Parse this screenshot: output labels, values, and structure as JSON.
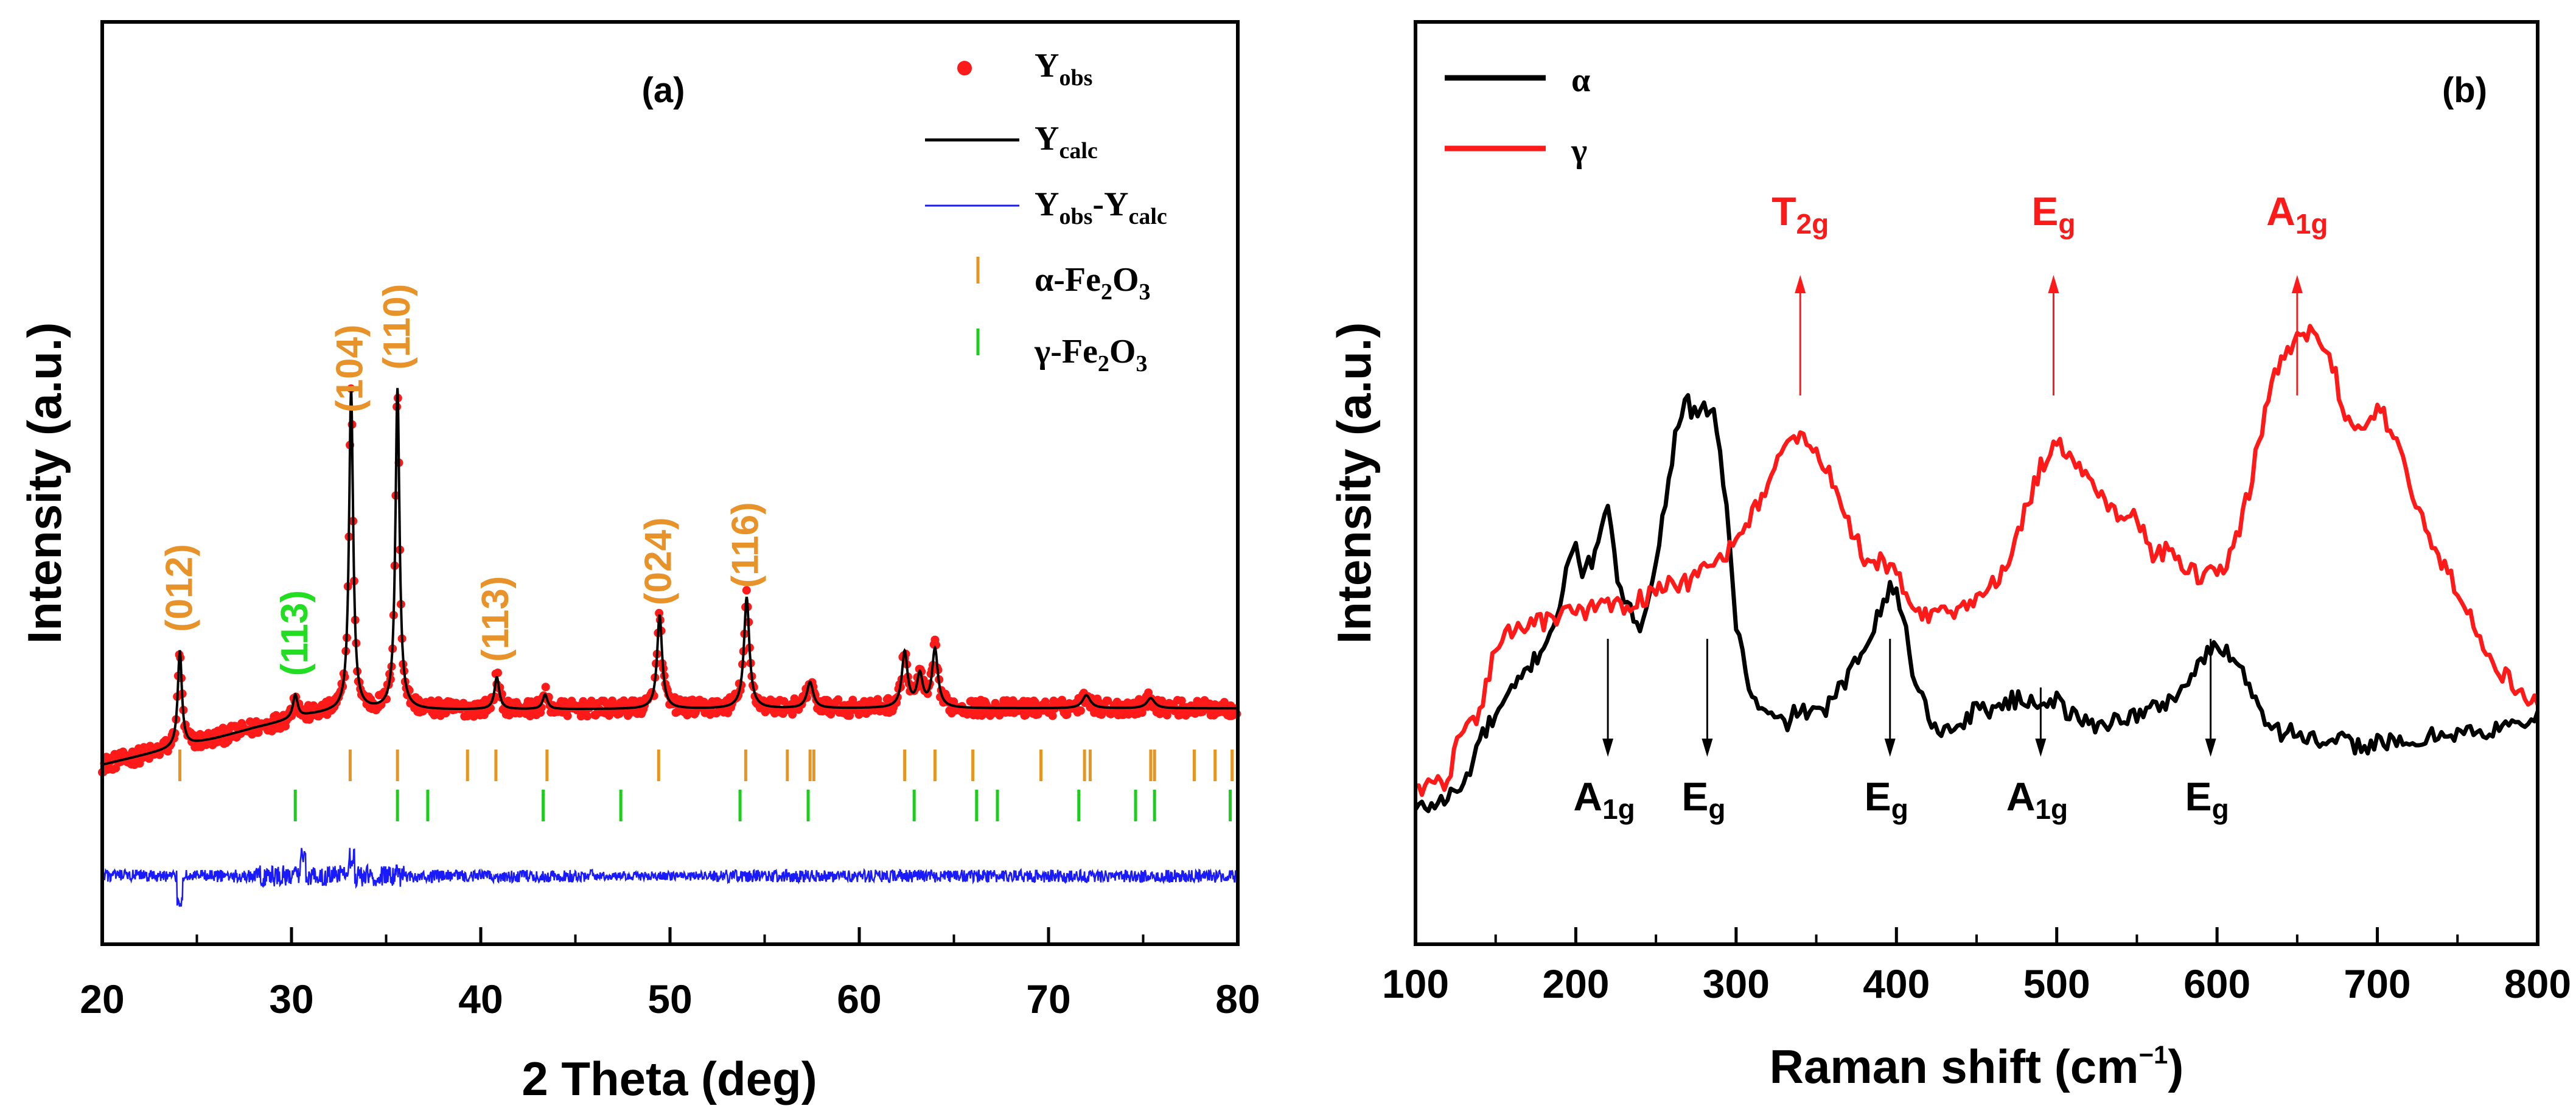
{
  "chart_data": [
    {
      "type": "line",
      "panel": "(a)",
      "xlabel": "2 Theta (deg)",
      "ylabel": "Intensity (a.u.)",
      "xlim": [
        20,
        80
      ],
      "xticks": [
        20,
        30,
        40,
        50,
        60,
        70,
        80
      ],
      "grid": false,
      "legend": {
        "position": "top-right",
        "entries": [
          {
            "key": "yobs",
            "label": "Y",
            "sub": "obs",
            "marker": "dot",
            "color": "#ff1a1a"
          },
          {
            "key": "ycalc",
            "label": "Y",
            "sub": "calc",
            "marker": "line",
            "color": "#000000"
          },
          {
            "key": "diff",
            "label_parts": [
              {
                "t": "Y",
                "sub": false
              },
              {
                "t": "obs",
                "sub": true
              },
              {
                "t": "-Y",
                "sub": false
              },
              {
                "t": "calc",
                "sub": true
              }
            ],
            "marker": "line",
            "color": "#1a1aff"
          },
          {
            "key": "alpha",
            "label_parts": [
              {
                "t": "α-Fe",
                "sub": false
              },
              {
                "t": "2",
                "sub": true
              },
              {
                "t": "O",
                "sub": false
              },
              {
                "t": "3",
                "sub": true
              }
            ],
            "marker": "tick",
            "color": "#e69520"
          },
          {
            "key": "gamma",
            "label_parts": [
              {
                "t": "γ-Fe",
                "sub": false
              },
              {
                "t": "2",
                "sub": true
              },
              {
                "t": "O",
                "sub": false
              },
              {
                "t": "3",
                "sub": true
              }
            ],
            "marker": "tick",
            "color": "#1ecc1e"
          }
        ]
      },
      "background": {
        "x": [
          20,
          22,
          24,
          26,
          28,
          30,
          31,
          32,
          34,
          36,
          38,
          40,
          45,
          50,
          55,
          60,
          65,
          70,
          75,
          80
        ],
        "y": [
          10,
          13,
          16,
          19,
          22.5,
          25.5,
          27,
          27.8,
          28.5,
          28.7,
          28.8,
          28.9,
          29,
          29.1,
          29.2,
          29.3,
          29.3,
          29.3,
          29.3,
          29.3
        ]
      },
      "peaks": [
        {
          "x": 24.1,
          "h": 33,
          "w": 0.13
        },
        {
          "x": 30.2,
          "h": 8,
          "w": 0.15
        },
        {
          "x": 33.15,
          "h": 110,
          "w": 0.13
        },
        {
          "x": 35.6,
          "h": 110,
          "w": 0.13
        },
        {
          "x": 40.85,
          "h": 11,
          "w": 0.15
        },
        {
          "x": 43.4,
          "h": 5,
          "w": 0.15
        },
        {
          "x": 49.45,
          "h": 32,
          "w": 0.16
        },
        {
          "x": 54.05,
          "h": 38,
          "w": 0.17
        },
        {
          "x": 57.4,
          "h": 9,
          "w": 0.2
        },
        {
          "x": 62.4,
          "h": 19,
          "w": 0.18
        },
        {
          "x": 63.2,
          "h": 11,
          "w": 0.18
        },
        {
          "x": 64.0,
          "h": 20,
          "w": 0.18
        },
        {
          "x": 72.0,
          "h": 4.5,
          "w": 0.25
        },
        {
          "x": 75.4,
          "h": 3.5,
          "w": 0.25
        }
      ],
      "alpha_reflections": [
        24.1,
        33.1,
        35.6,
        39.3,
        40.8,
        43.5,
        49.4,
        54.0,
        56.2,
        57.4,
        57.6,
        62.4,
        64.0,
        66.0,
        69.6,
        71.9,
        72.2,
        75.4,
        75.6,
        77.7,
        78.8,
        79.7
      ],
      "gamma_reflections": [
        30.2,
        35.6,
        37.2,
        43.3,
        47.4,
        53.7,
        57.3,
        62.9,
        66.2,
        67.3,
        71.6,
        74.6,
        75.6,
        79.6
      ],
      "annotations": [
        {
          "text": "(012)",
          "x": 24.1,
          "color": "#e8922a"
        },
        {
          "text": "(113)",
          "x": 30.2,
          "color": "#22dd22"
        },
        {
          "text": "(104)",
          "x": 33.1,
          "color": "#e8922a"
        },
        {
          "text": "(110)",
          "x": 35.6,
          "color": "#e8922a"
        },
        {
          "text": "(113)",
          "x": 40.8,
          "color": "#e8922a"
        },
        {
          "text": "(024)",
          "x": 49.4,
          "color": "#e8922a"
        },
        {
          "text": "(116)",
          "x": 54.0,
          "color": "#e8922a"
        }
      ]
    },
    {
      "type": "line",
      "panel": "(b)",
      "xlabel": "Raman shift (cm",
      "xlabel_sup": "−1",
      "xlabel_close": ")",
      "ylabel": "Intensity (a.u.)",
      "xlim": [
        100,
        800
      ],
      "xticks": [
        100,
        200,
        300,
        400,
        500,
        600,
        700,
        800
      ],
      "ylim": [
        0,
        100
      ],
      "grid": false,
      "legend": {
        "position": "top-left",
        "entries": [
          {
            "label": "α",
            "color": "#000000"
          },
          {
            "label": "γ",
            "color": "#ff1a1a"
          }
        ]
      },
      "series": [
        {
          "name": "α",
          "color": "#000000",
          "x": [
            100,
            115,
            130,
            140,
            150,
            160,
            170,
            180,
            190,
            195,
            200,
            205,
            210,
            215,
            220,
            225,
            230,
            240,
            250,
            258,
            265,
            270,
            275,
            280,
            285,
            290,
            295,
            300,
            310,
            320,
            330,
            340,
            350,
            360,
            370,
            380,
            390,
            395,
            400,
            405,
            410,
            420,
            430,
            440,
            450,
            460,
            470,
            480,
            490,
            500,
            510,
            520,
            530,
            540,
            550,
            560,
            570,
            580,
            590,
            600,
            610,
            620,
            630,
            640,
            650,
            660,
            670,
            680,
            690,
            700,
            720,
            740,
            760,
            770,
            780,
            790,
            800
          ],
          "y": [
            24,
            25,
            27,
            33,
            36,
            39,
            42,
            45,
            50,
            55,
            58,
            54,
            56,
            60,
            62,
            55,
            50,
            48,
            55,
            67,
            75,
            76,
            74,
            75,
            76,
            70,
            60,
            48,
            38,
            36,
            35,
            37,
            36,
            38,
            41,
            45,
            50,
            52,
            52,
            48,
            42,
            36,
            34,
            35,
            37,
            37,
            38,
            38,
            38,
            38,
            36,
            35,
            35,
            36,
            36,
            37,
            38,
            40,
            43,
            45,
            44,
            40,
            36,
            34,
            34,
            33,
            32,
            33,
            32,
            33,
            32,
            34,
            34,
            33,
            36,
            35,
            36
          ]
        },
        {
          "name": "γ",
          "color": "#ff1a1a",
          "x": [
            100,
            110,
            120,
            130,
            140,
            150,
            160,
            170,
            180,
            190,
            200,
            210,
            220,
            230,
            240,
            250,
            260,
            270,
            280,
            290,
            300,
            310,
            320,
            330,
            340,
            350,
            360,
            370,
            380,
            390,
            400,
            410,
            420,
            430,
            440,
            450,
            460,
            470,
            480,
            490,
            500,
            510,
            520,
            530,
            540,
            550,
            560,
            570,
            580,
            590,
            600,
            610,
            620,
            630,
            640,
            650,
            660,
            670,
            680,
            690,
            700,
            710,
            720,
            730,
            740,
            750,
            760,
            770,
            780,
            790,
            800
          ],
          "y": [
            27,
            27,
            28,
            35,
            36,
            45,
            47,
            48,
            48,
            49,
            49,
            50,
            50,
            50,
            51,
            52,
            53,
            53,
            55,
            56,
            58,
            62,
            66,
            70,
            72,
            70,
            66,
            61,
            56,
            56,
            54,
            50,
            49,
            49,
            50,
            51,
            53,
            56,
            62,
            68,
            71,
            69,
            66,
            63,
            62,
            61,
            57,
            57,
            55,
            54,
            54,
            57,
            65,
            75,
            82,
            84,
            85,
            83,
            74,
            72,
            76,
            72,
            66,
            60,
            56,
            52,
            48,
            44,
            41,
            39,
            38
          ]
        }
      ],
      "gamma_modes": [
        {
          "label": "T",
          "sub": "2g",
          "x": 340
        },
        {
          "label": "E",
          "sub": "g",
          "x": 498
        },
        {
          "label": "A",
          "sub": "1g",
          "x": 650
        }
      ],
      "alpha_modes": [
        {
          "label": "A",
          "sub": "1g",
          "x": 220
        },
        {
          "label": "E",
          "sub": "g",
          "x": 282
        },
        {
          "label": "E",
          "sub": "g",
          "x": 396
        },
        {
          "label": "A",
          "sub": "1g",
          "x": 490
        },
        {
          "label": "E",
          "sub": "g",
          "x": 596
        }
      ]
    }
  ]
}
